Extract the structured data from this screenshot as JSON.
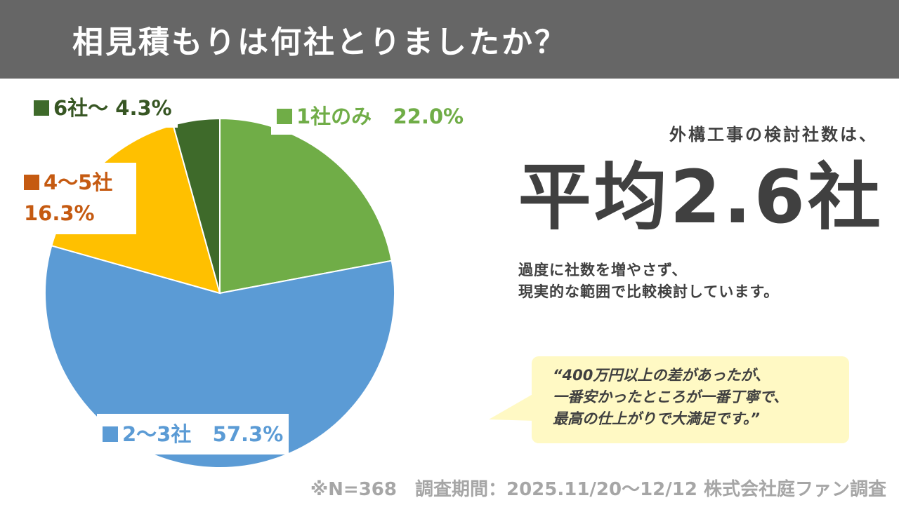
{
  "header": {
    "title": "相見積もりは何社とりましたか？",
    "background": "#666666"
  },
  "chart_data": {
    "type": "pie",
    "slices": [
      {
        "key": "one",
        "legend": "1社のみ",
        "value": 22.0,
        "value_label": "22.0%",
        "color": "#70ad47",
        "label_color": "#70ad47"
      },
      {
        "key": "two_three",
        "legend": "2〜3社",
        "value": 57.3,
        "value_label": "57.3%",
        "color": "#5b9bd5",
        "label_color": "#5b9bd5"
      },
      {
        "key": "four_five",
        "legend": "4〜5社",
        "value": 16.3,
        "value_label": "16.3%",
        "color": "#ffc000",
        "label_color": "#c55a11"
      },
      {
        "key": "six_plus",
        "legend": "6社〜",
        "value": 4.3,
        "value_label": "4.3%",
        "color": "#3e6a2a",
        "label_color": "#375623"
      }
    ]
  },
  "summary": {
    "caption": "外構工事の検討社数は、",
    "value": "平均2.6社"
  },
  "note": {
    "line1": "過度に社数を増やさず、",
    "line2": "現実的な範囲で比較検討しています。"
  },
  "quote": {
    "line1": "“400万円以上の差があったが、",
    "line2": "一番安かったところが一番丁寧で、",
    "line3": "最高の仕上がりで大満足です。”",
    "background": "#fff9c4"
  },
  "footnote": "※N=368　調査期間：2025.11/20〜12/12 株式会社庭ファン調査"
}
